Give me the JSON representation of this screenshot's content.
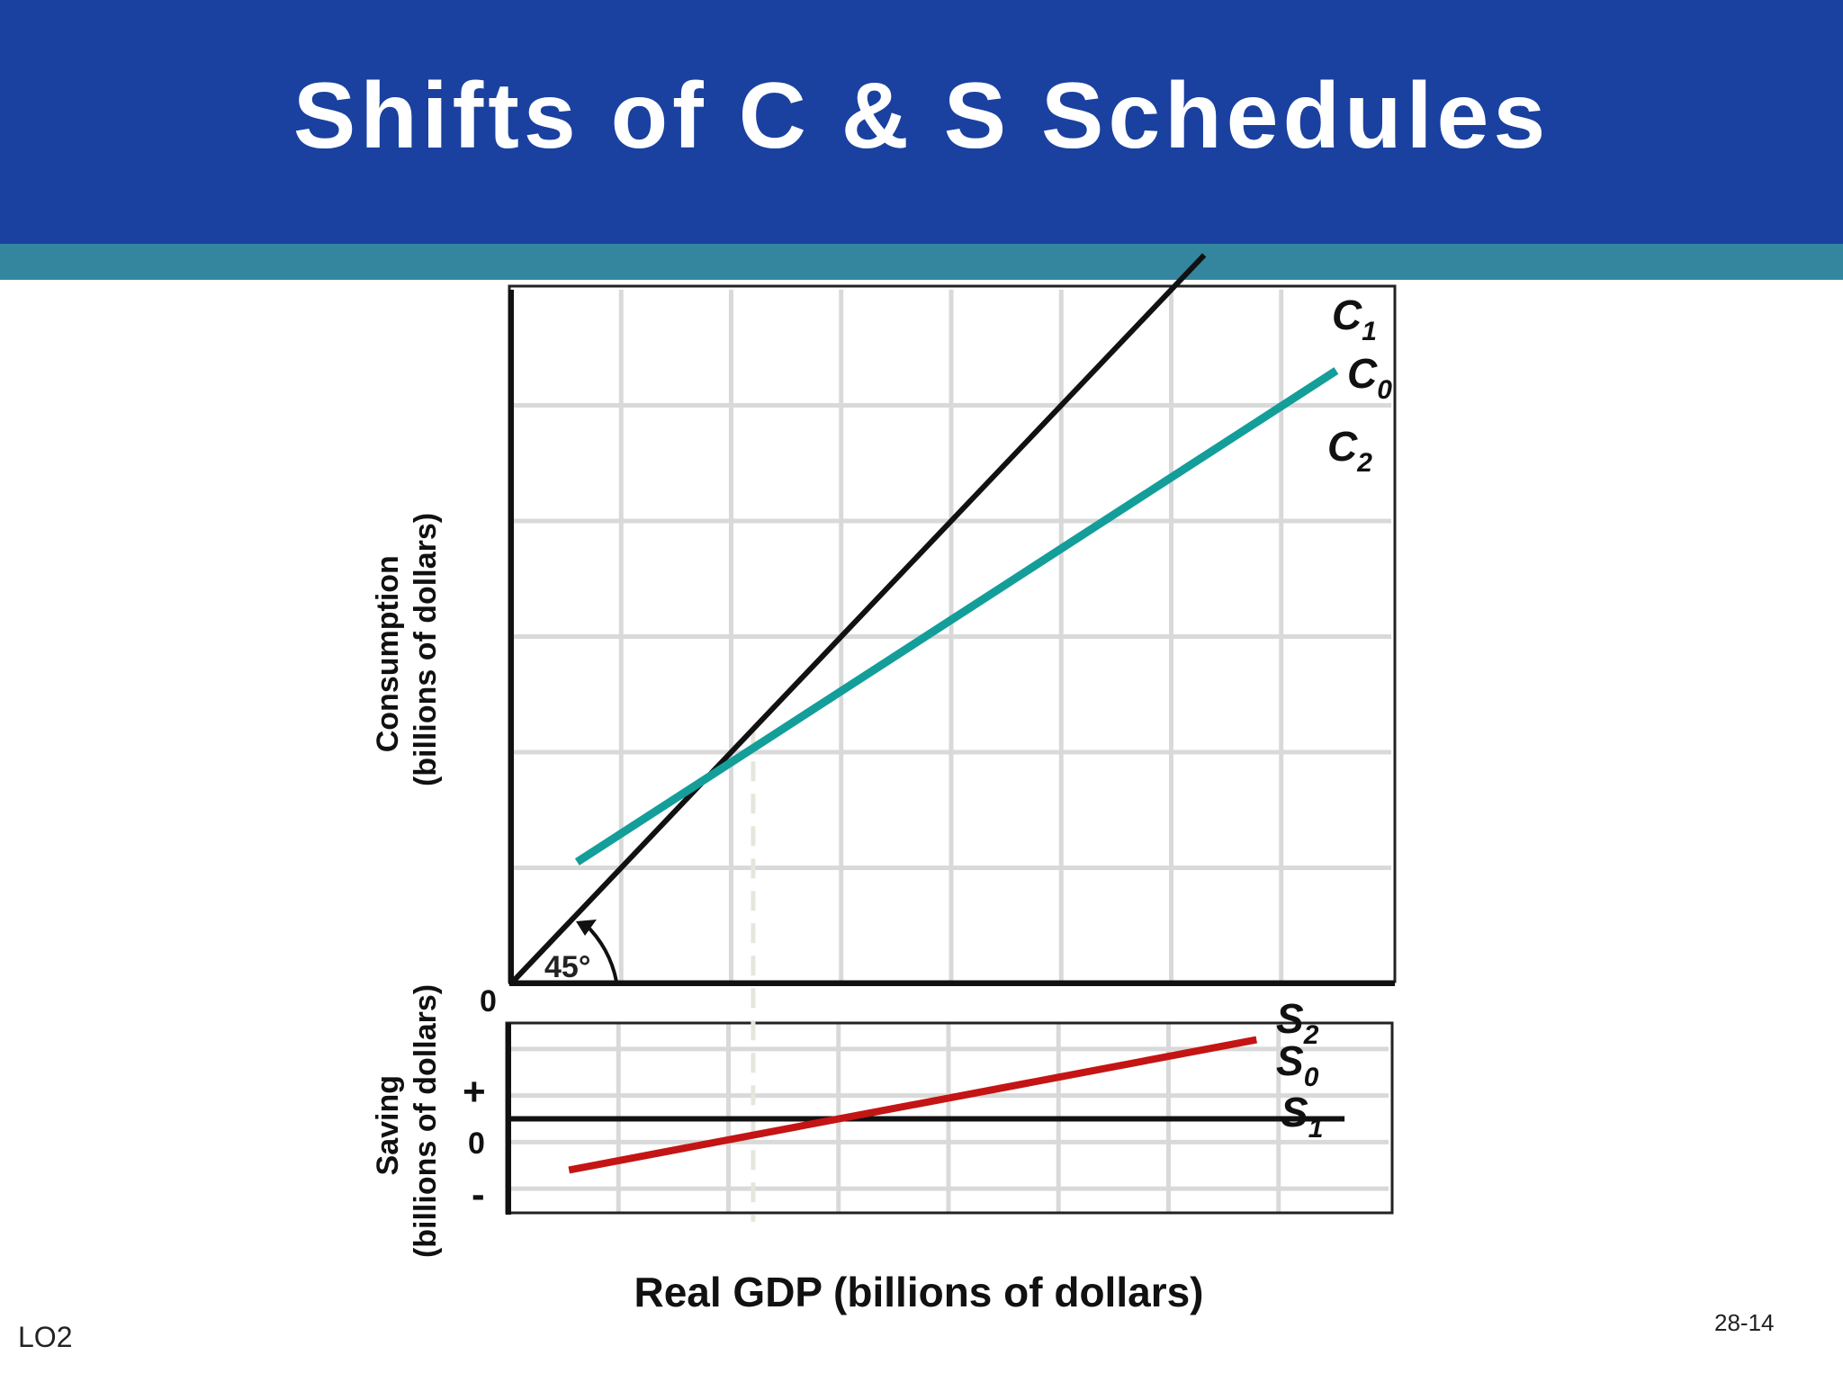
{
  "slide": {
    "title": "Shifts of C & S Schedules",
    "lo_label": "LO2",
    "page_number": "28-14"
  },
  "colors": {
    "title_bar": "#1a41a0",
    "accent_strip": "#34869f",
    "consumption_line": "#139e9a",
    "saving_line": "#c41414",
    "reference_line": "#111111",
    "grid": "#d9d9d9"
  },
  "chart_data": [
    {
      "type": "line",
      "panel": "consumption",
      "xlabel": "Real GDP (billions of dollars)",
      "ylabel_line1": "Consumption",
      "ylabel_line2": "(billions of dollars)",
      "origin_label": "0",
      "angle_label": "45°",
      "xlim": [
        0,
        8
      ],
      "ylim": [
        0,
        6
      ],
      "grid": true,
      "series": [
        {
          "name": "45° line",
          "x": [
            0,
            6.3
          ],
          "y": [
            0,
            6.3
          ],
          "color": "#111111"
        },
        {
          "name": "C0",
          "x": [
            0.6,
            7.5
          ],
          "y": [
            1.05,
            5.3
          ],
          "color": "#139e9a"
        }
      ],
      "curve_labels": [
        {
          "base": "C",
          "sub": "1"
        },
        {
          "base": "C",
          "sub": "0"
        },
        {
          "base": "C",
          "sub": "2"
        }
      ],
      "intersection": {
        "x": 2.2,
        "y": 2.2
      }
    },
    {
      "type": "line",
      "panel": "saving",
      "ylabel_line1": "Saving",
      "ylabel_line2": "(billions of dollars)",
      "ytick_labels": [
        "+",
        "0",
        "-"
      ],
      "xlim": [
        0,
        8
      ],
      "ylim": [
        -1,
        1
      ],
      "grid": true,
      "series": [
        {
          "name": "zero line",
          "x": [
            0,
            7.6
          ],
          "y": [
            0,
            0
          ],
          "color": "#111111"
        },
        {
          "name": "S0",
          "x": [
            0.55,
            6.8
          ],
          "y": [
            -0.55,
            0.85
          ],
          "color": "#c41414"
        }
      ],
      "curve_labels": [
        {
          "base": "S",
          "sub": "2"
        },
        {
          "base": "S",
          "sub": "0"
        },
        {
          "base": "S",
          "sub": "1"
        }
      ],
      "break_even_x": 2.2
    }
  ]
}
